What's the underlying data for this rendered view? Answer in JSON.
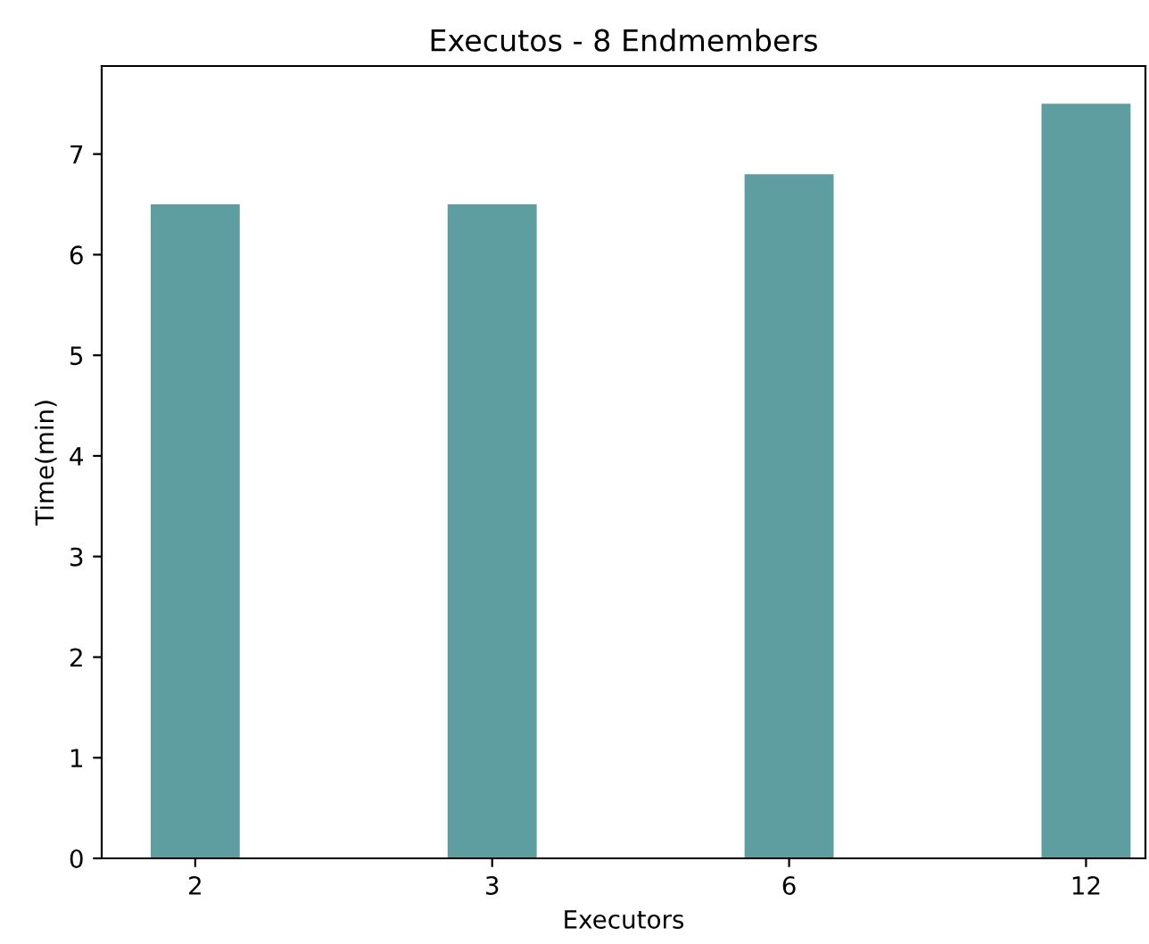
{
  "chart_data": {
    "type": "bar",
    "title": "Executos - 8 Endmembers",
    "xlabel": "Executors",
    "ylabel": "Time(min)",
    "categories": [
      "2",
      "3",
      "6",
      "12"
    ],
    "values": [
      6.5,
      6.5,
      6.8,
      7.5
    ],
    "color": "#5f9ea0",
    "ylim": [
      0,
      7.875
    ],
    "yticks": [
      0,
      1,
      2,
      3,
      4,
      5,
      6,
      7
    ],
    "grid": false
  }
}
